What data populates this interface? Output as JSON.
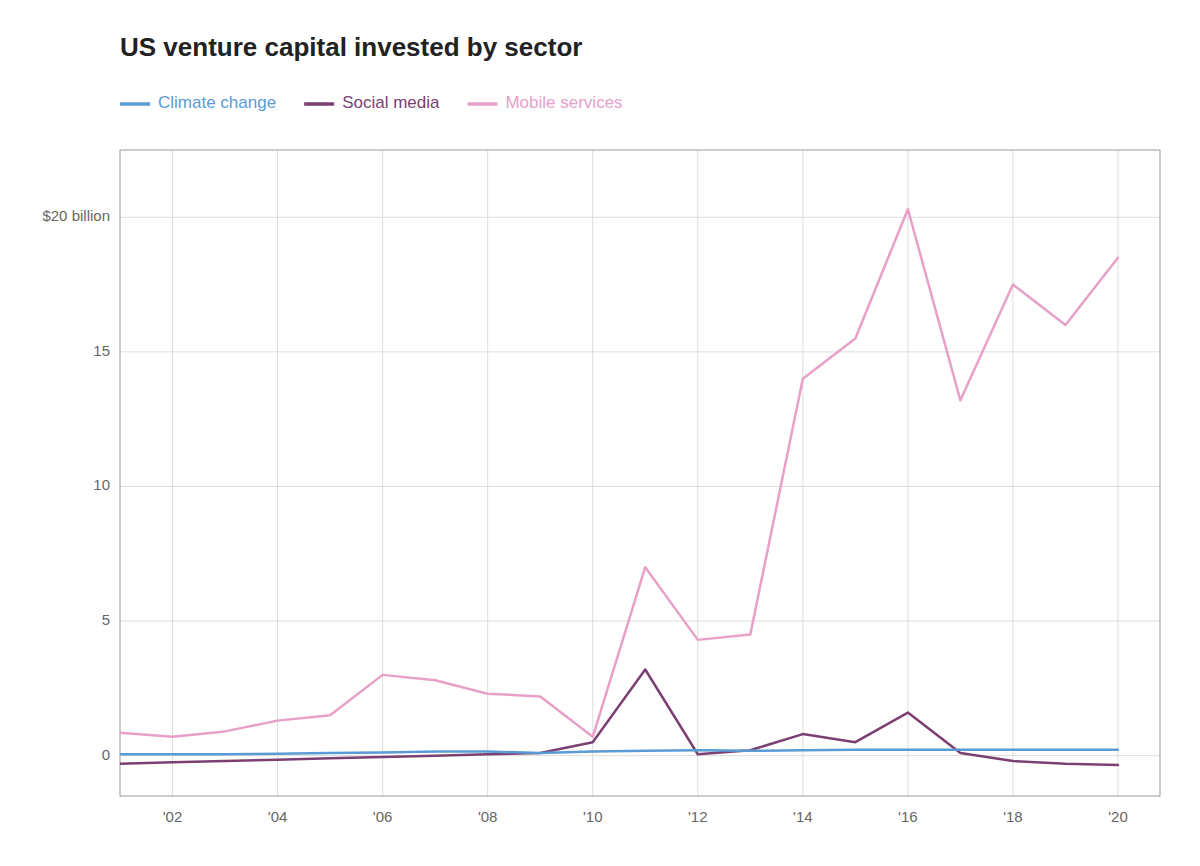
{
  "chart_data": {
    "type": "line",
    "title": "US venture capital invested by sector",
    "x": [
      2001,
      2002,
      2003,
      2004,
      2005,
      2006,
      2007,
      2008,
      2009,
      2010,
      2011,
      2012,
      2013,
      2014,
      2015,
      2016,
      2017,
      2018,
      2019,
      2020
    ],
    "series": [
      {
        "name": "Climate change",
        "color": "#5B9BD5",
        "values": [
          0.05,
          0.05,
          0.05,
          0.07,
          0.1,
          0.12,
          0.15,
          0.15,
          0.1,
          0.15,
          0.18,
          0.2,
          0.18,
          0.2,
          0.22,
          0.22,
          0.22,
          0.22,
          0.22,
          0.22
        ]
      },
      {
        "name": "Social media",
        "color": "#7B3F72",
        "values": [
          -0.3,
          -0.25,
          -0.2,
          -0.15,
          -0.1,
          -0.05,
          0.0,
          0.05,
          0.1,
          0.5,
          3.2,
          0.05,
          0.2,
          0.8,
          0.5,
          1.6,
          0.1,
          -0.2,
          -0.3,
          -0.35
        ]
      },
      {
        "name": "Mobile services",
        "color": "#E8A0C8",
        "values": [
          0.85,
          0.7,
          0.9,
          1.3,
          1.5,
          3.0,
          2.8,
          2.3,
          2.2,
          0.7,
          7.0,
          4.3,
          4.5,
          14.0,
          15.5,
          20.3,
          13.2,
          17.5,
          16.0,
          18.5
        ]
      }
    ],
    "xlim": [
      2001.0,
      2020.8
    ],
    "xticks": [
      {
        "value": 2002,
        "label": "'02"
      },
      {
        "value": 2004,
        "label": "'04"
      },
      {
        "value": 2006,
        "label": "'06"
      },
      {
        "value": 2008,
        "label": "'08"
      },
      {
        "value": 2010,
        "label": "'10"
      },
      {
        "value": 2012,
        "label": "'12"
      },
      {
        "value": 2014,
        "label": "'14"
      },
      {
        "value": 2016,
        "label": "'16"
      },
      {
        "value": 2018,
        "label": "'18"
      },
      {
        "value": 2020,
        "label": "'20"
      }
    ],
    "ylim": [
      -1.5,
      22.5
    ],
    "yticks": [
      0,
      5,
      10,
      15,
      {
        "value": 20,
        "label": "$20 billion"
      }
    ],
    "grid": true,
    "legend": "top-left"
  }
}
